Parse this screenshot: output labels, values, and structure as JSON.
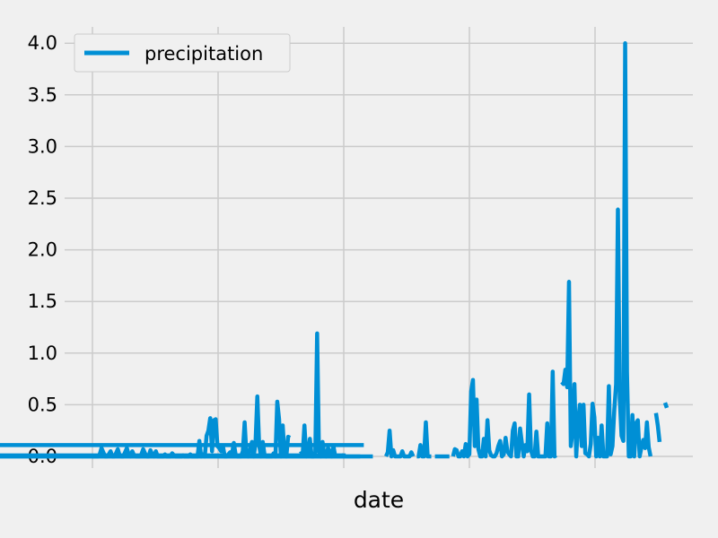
{
  "chart_data": {
    "type": "line",
    "xlabel": "date",
    "ylabel": "",
    "ylim": [
      -0.1,
      4.2
    ],
    "yticks": [
      "0.0",
      "0.5",
      "1.0",
      "1.5",
      "2.0",
      "2.5",
      "3.0",
      "3.5",
      "4.0"
    ],
    "xticks_count": 5,
    "grid": true,
    "legend_position": "top-left",
    "series": [
      {
        "name": "precipitation",
        "color": "#008fd5",
        "values": [
          0.0,
          0.0,
          0.0,
          0.0,
          0.02,
          0.08,
          0.04,
          0.0,
          0.0,
          0.02,
          0.05,
          0.0,
          0.0,
          0.03,
          0.07,
          0.01,
          0.0,
          0.0,
          0.04,
          0.08,
          0.02,
          0.0,
          0.05,
          0.01,
          0.0,
          0.0,
          0.0,
          0.02,
          0.07,
          0.03,
          0.0,
          0.0,
          0.06,
          0.02,
          0.0,
          0.05,
          0.0,
          0.0,
          0.0,
          0.0,
          0.02,
          0.0,
          0.0,
          0.0,
          0.03,
          0.01,
          0.0,
          0.0,
          0.0,
          0.0,
          0.01,
          0.0,
          0.0,
          0.0,
          0.02,
          0.0,
          0.0,
          0.0,
          0.0,
          0.15,
          0.0,
          0.02,
          0.0,
          0.2,
          0.25,
          0.37,
          0.05,
          0.35,
          0.36,
          0.1,
          0.08,
          0.05,
          0.1,
          0.0,
          0.0,
          0.02,
          0.04,
          0.02,
          0.13,
          0.02,
          0.0,
          0.0,
          0.0,
          0.05,
          0.33,
          0.01,
          0.0,
          0.07,
          0.14,
          0.0,
          0.13,
          0.58,
          0.11,
          0.0,
          0.14,
          0.01,
          0.0,
          0.0,
          0.0,
          0.0,
          0.03,
          0.0,
          0.53,
          0.36,
          0.0,
          0.3,
          0.01,
          0.0,
          0.19,
          0.18,
          null,
          null,
          null,
          null,
          null,
          0.05,
          0.01,
          0.3,
          0.0,
          0.03,
          0.17,
          0.0,
          0.0,
          0.04,
          1.19,
          0.05,
          0.0,
          0.14,
          0.01,
          0.0,
          0.08,
          0.05,
          0.0,
          0.1,
          0.0,
          null,
          null,
          null,
          0.0,
          0.02,
          null,
          0.01,
          null,
          null,
          null,
          null,
          null,
          null,
          null,
          0.0,
          null,
          0.11,
          null,
          null,
          null,
          null,
          0.0,
          null,
          null,
          null,
          null,
          null,
          0.0,
          0.04,
          0.25,
          0.0,
          0.06,
          0.0,
          0.0,
          0.0,
          0.0,
          0.05,
          0.0,
          0.0,
          0.0,
          0.0,
          0.04,
          0.0,
          null,
          0.0,
          0.0,
          0.11,
          0.0,
          0.0,
          0.33,
          0.0,
          0.0,
          0.0,
          null,
          0.0,
          0.0,
          0.0,
          0.0,
          0.0,
          0.0,
          0.0,
          0.0,
          0.0,
          null,
          0.0,
          0.07,
          0.06,
          0.0,
          0.0,
          0.05,
          0.0,
          0.12,
          0.0,
          0.02,
          0.63,
          0.74,
          0.1,
          0.55,
          0.07,
          0.0,
          0.0,
          0.17,
          0.0,
          0.35,
          0.06,
          0.01,
          0.0,
          0.0,
          0.03,
          0.1,
          0.15,
          0.0,
          0.02,
          0.18,
          0.05,
          0.02,
          0.0,
          0.25,
          0.32,
          0.0,
          0.0,
          0.27,
          0.13,
          0.0,
          0.11,
          0.05,
          0.6,
          0.06,
          0.0,
          0.0,
          0.24,
          0.0,
          0.0,
          0.0,
          0.0,
          0.0,
          0.32,
          0.0,
          0.0,
          0.82,
          0.0,
          0.01,
          null,
          null,
          0.72,
          0.7,
          0.84,
          0.67,
          1.69,
          0.1,
          0.25,
          0.7,
          0.0,
          0.33,
          0.5,
          0.1,
          0.5,
          0.03,
          0.02,
          0.0,
          0.12,
          0.51,
          0.38,
          0.0,
          0.18,
          0.0,
          0.3,
          0.0,
          0.0,
          0.0,
          0.68,
          0.02,
          0.1,
          0.45,
          0.7,
          2.39,
          0.56,
          0.2,
          0.15,
          4.0,
          0.82,
          0.0,
          0.0,
          0.4,
          0.0,
          0.32,
          0.35,
          0.0,
          0.09,
          0.16,
          0.08,
          0.33,
          0.09,
          0.0,
          null,
          null,
          0.42,
          0.3,
          0.14,
          null,
          null,
          0.52,
          0.47
        ]
      }
    ]
  }
}
